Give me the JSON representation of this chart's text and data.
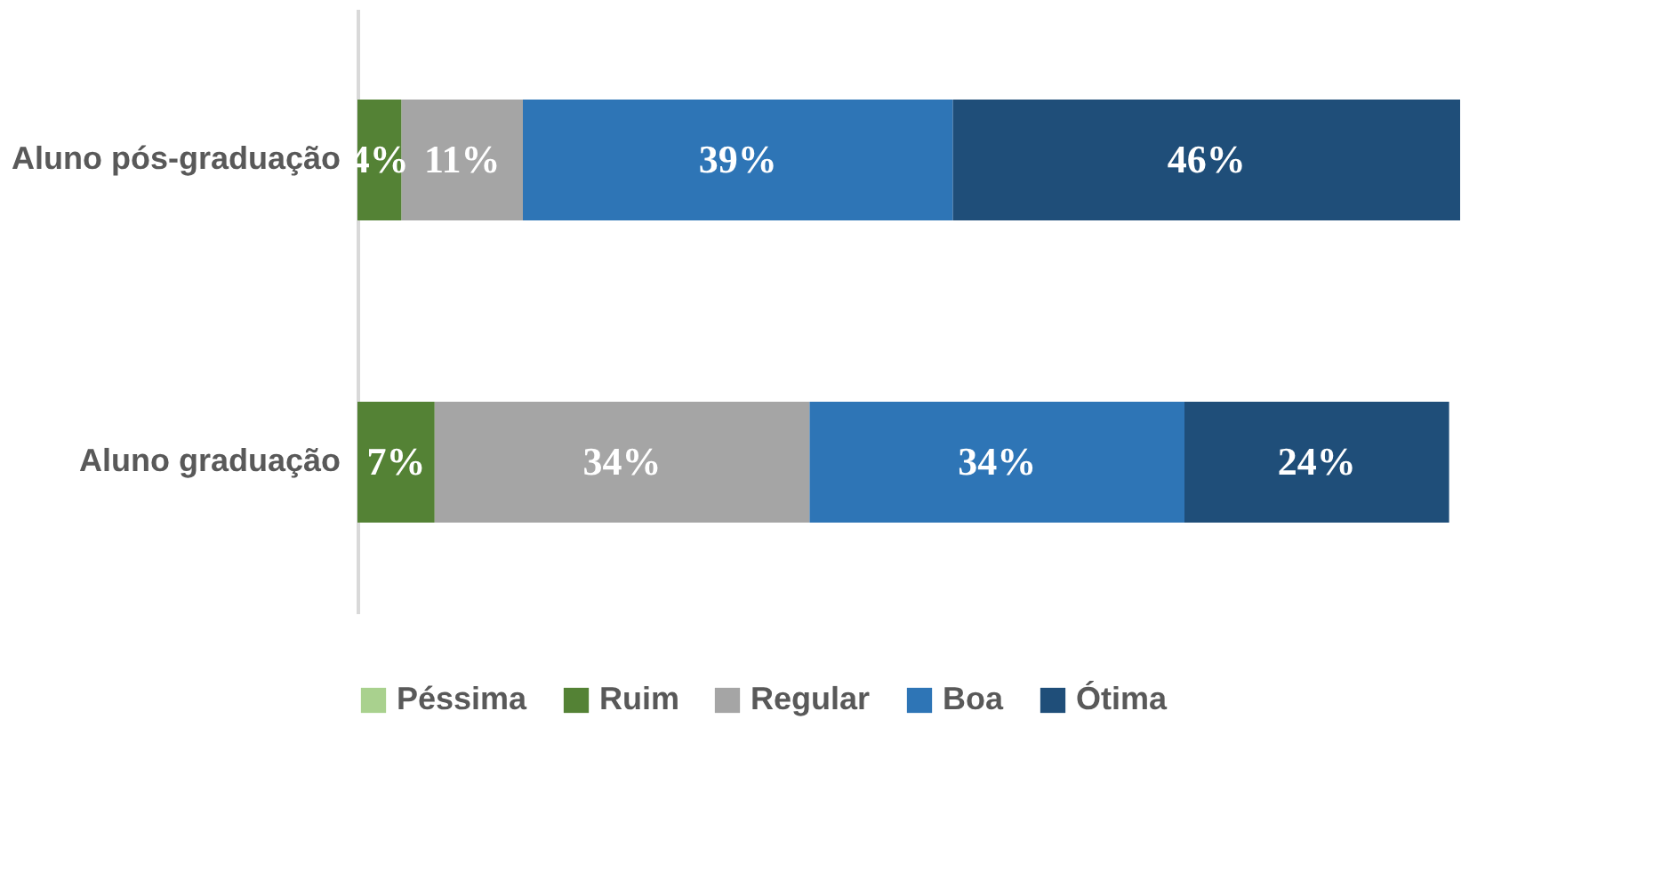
{
  "chart_data": {
    "type": "bar",
    "orientation": "horizontal",
    "stacked": true,
    "categories": [
      "Aluno pós-graduação",
      "Aluno graduação"
    ],
    "series": [
      {
        "name": "Péssima",
        "color": "#a9d18e",
        "values": [
          0,
          0
        ],
        "value_labels": [
          null,
          null
        ]
      },
      {
        "name": "Ruim",
        "color": "#548235",
        "values": [
          4,
          7
        ],
        "value_labels": [
          "4%",
          "7%"
        ]
      },
      {
        "name": "Regular",
        "color": "#a5a5a5",
        "values": [
          11,
          34
        ],
        "value_labels": [
          "11%",
          "34%"
        ]
      },
      {
        "name": "Boa",
        "color": "#2e75b6",
        "values": [
          39,
          34
        ],
        "value_labels": [
          "39%",
          "34%"
        ]
      },
      {
        "name": "Ótima",
        "color": "#1f4e79",
        "values": [
          46,
          24
        ],
        "value_labels": [
          "46%",
          "24%"
        ]
      }
    ],
    "xlim": [
      0,
      100
    ],
    "tick_labels": "y",
    "legend": "bottom"
  }
}
